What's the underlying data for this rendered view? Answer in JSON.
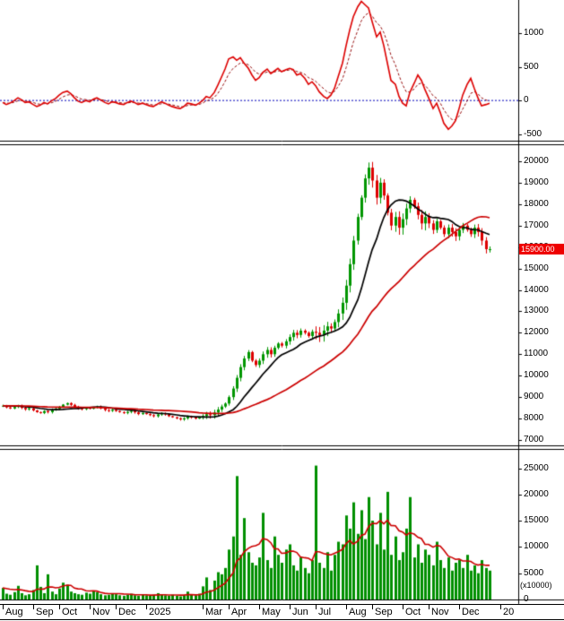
{
  "colors": {
    "candle_up": "#009600",
    "candle_down": "#dd0000",
    "ma_fast": "#000000",
    "ma_slow": "#cc0000",
    "osc_line": "#dd0000",
    "osc_signal": "#991111",
    "zero_line": "#0000bb",
    "volume_bar": "#008f00",
    "volume_ma": "#cc0000",
    "tag_bg": "#ee0000",
    "axis_line": "#000000"
  },
  "x_axis": {
    "months": [
      {
        "label": "Aug",
        "idx": 0
      },
      {
        "label": "Sep",
        "idx": 8
      },
      {
        "label": "Oct",
        "idx": 15
      },
      {
        "label": "Nov",
        "idx": 23
      },
      {
        "label": "Dec",
        "idx": 30
      },
      {
        "label": "2025",
        "idx": 38
      },
      {
        "label": "Mar",
        "idx": 53
      },
      {
        "label": "Apr",
        "idx": 60
      },
      {
        "label": "May",
        "idx": 68
      },
      {
        "label": "Jun",
        "idx": 76
      },
      {
        "label": "Jul",
        "idx": 83
      },
      {
        "label": "Aug",
        "idx": 91
      },
      {
        "label": "Sep",
        "idx": 98
      },
      {
        "label": "Oct",
        "idx": 106
      },
      {
        "label": "Nov",
        "idx": 113
      },
      {
        "label": "Dec",
        "idx": 121
      },
      {
        "label": "20",
        "idx": 132
      }
    ]
  },
  "chart_data": [
    {
      "type": "line",
      "name": "oscillator-panel",
      "panel": "top",
      "ylim": [
        -600,
        1500
      ],
      "yticks": [
        1000,
        500,
        0,
        -500
      ],
      "zero_line": 0,
      "legend_position": "none",
      "grid": false,
      "series": [
        {
          "name": "macd",
          "style": "solid-red",
          "values": [
            -30,
            -60,
            -40,
            0,
            40,
            10,
            -30,
            -20,
            -60,
            -90,
            -70,
            -30,
            -50,
            0,
            30,
            80,
            120,
            140,
            100,
            40,
            -10,
            -30,
            0,
            -20,
            20,
            40,
            10,
            -30,
            -50,
            -20,
            -30,
            -50,
            -60,
            -30,
            -10,
            -30,
            -60,
            -40,
            -60,
            -80,
            -90,
            -50,
            -20,
            -40,
            -70,
            -90,
            -110,
            -120,
            -90,
            -40,
            -50,
            -70,
            -40,
            0,
            60,
            40,
            120,
            230,
            350,
            470,
            620,
            650,
            600,
            640,
            560,
            480,
            380,
            300,
            340,
            420,
            470,
            400,
            440,
            480,
            430,
            460,
            480,
            460,
            380,
            400,
            330,
            240,
            280,
            220,
            130,
            60,
            30,
            80,
            180,
            350,
            560,
            820,
            1050,
            1250,
            1400,
            1480,
            1430,
            1380,
            1180,
            950,
            1020,
            820,
            560,
            300,
            240,
            60,
            -40,
            -80,
            120,
            260,
            380,
            300,
            160,
            40,
            -120,
            -40,
            -180,
            -340,
            -430,
            -380,
            -300,
            -120,
            80,
            240,
            330,
            180,
            40,
            -80,
            -60,
            -40
          ]
        },
        {
          "name": "signal",
          "style": "dashed-dark-red",
          "derived": "ema",
          "window": 5,
          "of": "macd"
        }
      ]
    },
    {
      "type": "candlestick",
      "name": "price-panel",
      "panel": "middle",
      "ylim": [
        6750,
        20750
      ],
      "yticks": [
        20000,
        19000,
        18000,
        17000,
        16000,
        15000,
        14000,
        13000,
        12000,
        11000,
        10000,
        9000,
        8000,
        7000
      ],
      "last_price": 15900,
      "last_price_label": "15900.00",
      "closes": [
        8600,
        8520,
        8470,
        8540,
        8600,
        8500,
        8430,
        8480,
        8380,
        8300,
        8260,
        8350,
        8300,
        8420,
        8460,
        8550,
        8650,
        8720,
        8640,
        8540,
        8480,
        8440,
        8500,
        8460,
        8520,
        8560,
        8490,
        8400,
        8360,
        8410,
        8350,
        8300,
        8260,
        8310,
        8360,
        8290,
        8210,
        8260,
        8210,
        8160,
        8110,
        8190,
        8240,
        8190,
        8110,
        8060,
        8010,
        7960,
        8010,
        8090,
        8050,
        8000,
        8060,
        8120,
        8200,
        8160,
        8280,
        8420,
        8560,
        8700,
        9000,
        9400,
        9900,
        10400,
        10800,
        11100,
        10700,
        10500,
        10700,
        11000,
        11200,
        11000,
        11300,
        11500,
        11400,
        11600,
        11800,
        12000,
        11900,
        12100,
        12000,
        11850,
        12050,
        12000,
        11900,
        12100,
        12300,
        12200,
        12500,
        12900,
        13400,
        14200,
        15200,
        16300,
        17400,
        18300,
        19200,
        19700,
        19100,
        18300,
        19000,
        18400,
        17600,
        17000,
        17400,
        16900,
        17300,
        17800,
        18200,
        17900,
        17500,
        17100,
        17400,
        17100,
        16800,
        17200,
        16900,
        16600,
        16900,
        16700,
        16500,
        16800,
        17000,
        16800,
        16600,
        16900,
        16700,
        16300,
        15900,
        15900
      ],
      "overlays": [
        {
          "name": "ma-fast-black",
          "derived": "sma",
          "window": 12,
          "of": "closes"
        },
        {
          "name": "ma-slow-red",
          "derived": "sma",
          "window": 35,
          "of": "closes"
        }
      ]
    },
    {
      "type": "bar",
      "name": "volume-panel",
      "panel": "bottom",
      "ylim": [
        0,
        28500
      ],
      "yticks": [
        25000,
        20000,
        15000,
        10000,
        5000,
        0
      ],
      "unit_label": "(x10000)",
      "values": [
        2200,
        1100,
        900,
        1400,
        2600,
        1200,
        800,
        1000,
        1800,
        6500,
        2400,
        1200,
        4800,
        1500,
        1000,
        2100,
        3200,
        2800,
        1500,
        1200,
        1000,
        900,
        1300,
        1100,
        1600,
        1400,
        1000,
        800,
        900,
        1200,
        1000,
        800,
        700,
        900,
        1100,
        800,
        700,
        900,
        800,
        700,
        900,
        1200,
        1000,
        800,
        700,
        900,
        700,
        600,
        800,
        1500,
        1000,
        800,
        1100,
        2500,
        4200,
        1800,
        3600,
        5200,
        4800,
        6000,
        9500,
        12000,
        23500,
        8500,
        15500,
        9000,
        7000,
        6500,
        8000,
        16500,
        7500,
        6000,
        12000,
        8500,
        7000,
        9500,
        10500,
        6500,
        5500,
        8000,
        6000,
        5000,
        7500,
        25500,
        7000,
        6000,
        9000,
        5500,
        8500,
        11000,
        10500,
        16000,
        13500,
        18500,
        12500,
        17000,
        11500,
        19500,
        15000,
        10500,
        16500,
        9500,
        20500,
        8500,
        12000,
        7500,
        9000,
        13500,
        19500,
        8000,
        10500,
        7000,
        9500,
        8500,
        6500,
        11000,
        7500,
        6000,
        8000,
        5500,
        7000,
        7500,
        6000,
        8500,
        5500,
        6500,
        5000,
        7500,
        6000,
        5500
      ],
      "overlays": [
        {
          "name": "volume-ma-red",
          "derived": "sma",
          "window": 10,
          "of": "values"
        }
      ]
    }
  ]
}
